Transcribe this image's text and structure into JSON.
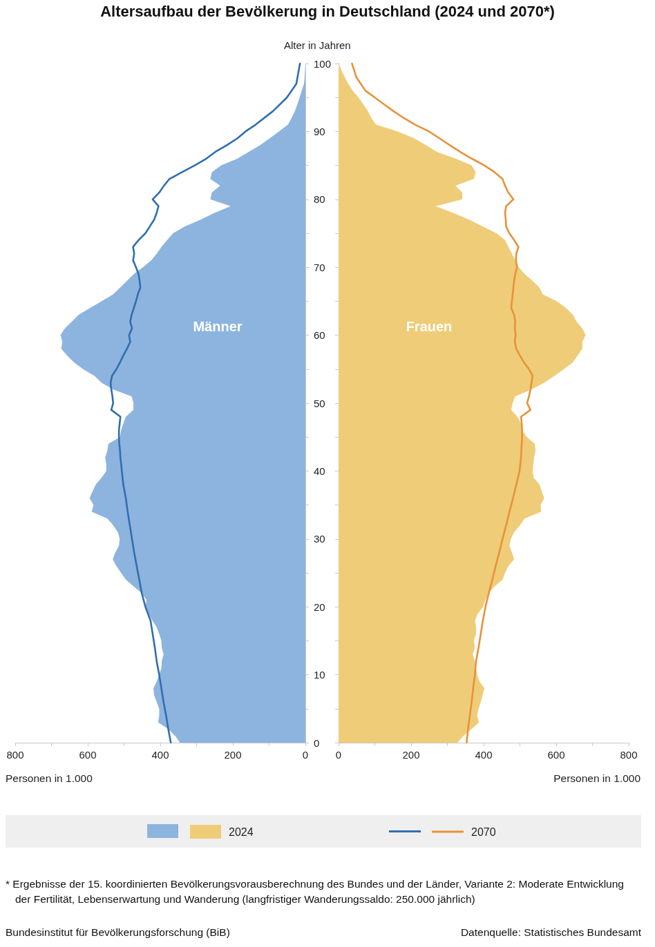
{
  "chart_data": [
    {
      "type": "area",
      "title": "Altersaufbau der Bevölkerung in Deutschland (2024 und 2070*)",
      "ylabel": "Alter in Jahren",
      "xlabel": "Personen in 1.000",
      "orientation": "horizontal",
      "xlim": [
        800,
        0
      ],
      "xticks": [
        800,
        {
          "value": 700,
          "label": null
        },
        600,
        {
          "value": 500,
          "label": null
        },
        400,
        {
          "value": 300,
          "label": null
        },
        200,
        {
          "value": 100,
          "label": null
        },
        0
      ],
      "ylim": [
        0,
        100
      ],
      "yticks": [
        0,
        {
          "value": 5,
          "label": null
        },
        10,
        {
          "value": 15,
          "label": null
        },
        20,
        {
          "value": 25,
          "label": null
        },
        30,
        {
          "value": 35,
          "label": null
        },
        40,
        {
          "value": 45,
          "label": null
        },
        50,
        {
          "value": 55,
          "label": null
        },
        60,
        {
          "value": 65,
          "label": null
        },
        70,
        {
          "value": 75,
          "label": null
        },
        80,
        {
          "value": 85,
          "label": null
        },
        90,
        {
          "value": 95,
          "label": null
        },
        100
      ],
      "grid": false,
      "marker": "none",
      "line_style": "solid",
      "series": [
        {
          "type": "area",
          "color": "#8cb4df",
          "x": [
            0,
            1,
            2,
            3,
            4,
            5,
            6,
            7,
            8,
            9,
            10,
            11,
            12,
            13,
            14,
            15,
            16,
            17,
            18,
            19,
            20,
            21,
            22,
            23,
            24,
            25,
            26,
            27,
            28,
            29,
            30,
            31,
            32,
            33,
            34,
            35,
            36,
            37,
            38,
            39,
            40,
            41,
            42,
            43,
            44,
            45,
            46,
            47,
            48,
            49,
            50,
            51,
            52,
            53,
            54,
            55,
            56,
            57,
            58,
            59,
            60,
            61,
            62,
            63,
            64,
            65,
            66,
            67,
            68,
            69,
            70,
            71,
            72,
            73,
            74,
            75,
            76,
            77,
            78,
            79,
            80,
            81,
            82,
            83,
            84,
            85,
            86,
            87,
            88,
            89,
            90,
            91,
            92,
            93,
            94,
            95,
            96,
            97,
            98,
            99,
            100
          ],
          "values": [
            346,
            359,
            378,
            406,
            403,
            403,
            410,
            417,
            419,
            410,
            403,
            397,
            396,
            391,
            396,
            397,
            403,
            410,
            422,
            432,
            441,
            438,
            451,
            473,
            495,
            508,
            521,
            531,
            524,
            514,
            512,
            517,
            530,
            546,
            589,
            584,
            595,
            587,
            578,
            562,
            549,
            549,
            552,
            546,
            543,
            511,
            508,
            502,
            495,
            474,
            474,
            479,
            530,
            562,
            581,
            613,
            638,
            657,
            673,
            670,
            675,
            663,
            644,
            625,
            594,
            562,
            530,
            511,
            492,
            473,
            448,
            425,
            410,
            397,
            381,
            365,
            333,
            289,
            251,
            206,
            262,
            258,
            235,
            262,
            258,
            232,
            187,
            156,
            124,
            98,
            73,
            48,
            38,
            29,
            22,
            16,
            10,
            4,
            2,
            1,
            0
          ]
        },
        {
          "type": "line",
          "color": "#2f6eb0",
          "x": [
            0,
            2,
            4,
            6,
            8,
            10,
            12,
            14,
            16,
            18,
            20,
            22,
            24,
            26,
            28,
            30,
            32,
            34,
            36,
            38,
            40,
            41,
            42,
            43,
            44,
            45,
            46,
            47,
            48,
            49,
            50,
            51,
            52,
            53,
            54,
            55,
            56,
            57,
            58,
            59,
            60,
            61,
            62,
            63,
            64,
            65,
            66,
            67,
            68,
            69,
            70,
            71,
            72,
            73,
            74,
            75,
            76,
            77,
            78,
            79,
            80,
            81,
            82,
            83,
            84,
            85,
            86,
            87,
            88,
            89,
            90,
            91,
            93,
            95,
            97,
            100
          ],
          "values": [
            371,
            378,
            384,
            391,
            397,
            403,
            410,
            415,
            421,
            427,
            441,
            451,
            458,
            465,
            472,
            478,
            484,
            490,
            495,
            502,
            506,
            508,
            510,
            511,
            513,
            514,
            514,
            512,
            510,
            535,
            530,
            532,
            535,
            537,
            533,
            521,
            511,
            502,
            492,
            483,
            486,
            478,
            483,
            479,
            473,
            467,
            462,
            455,
            457,
            460,
            467,
            475,
            472,
            475,
            460,
            441,
            429,
            417,
            410,
            405,
            421,
            403,
            390,
            375,
            340,
            305,
            273,
            248,
            216,
            187,
            165,
            137,
            89,
            51,
            25,
            15
          ]
        }
      ],
      "annotations": [
        "Männer",
        "* Ergebnisse der 15. koordinierten Bevölkerungsvorausberechnung des Bundes und der Länder, Variante 2: Moderate Entwicklung der Fertilität, Lebenserwartung und Wanderung (langfristiger Wanderungssaldo: 250.000 jährlich)",
        "Bundesinstitut für Bevölkerungsforschung (BiB)",
        "Datenquelle: Statistisches Bundesamt"
      ]
    },
    {
      "type": "area",
      "xlabel": "Personen in 1.000",
      "orientation": "horizontal",
      "xlim": [
        0,
        800
      ],
      "xticks": [
        0,
        {
          "value": 100,
          "label": null
        },
        200,
        {
          "value": 300,
          "label": null
        },
        400,
        {
          "value": 500,
          "label": null
        },
        600,
        {
          "value": 700,
          "label": null
        },
        800
      ],
      "ylim": [
        0,
        100
      ],
      "yticks": [
        0,
        {
          "value": 5,
          "label": null
        },
        10,
        {
          "value": 15,
          "label": null
        },
        20,
        {
          "value": 25,
          "label": null
        },
        30,
        {
          "value": 35,
          "label": null
        },
        40,
        {
          "value": 45,
          "label": null
        },
        50,
        {
          "value": 55,
          "label": null
        },
        60,
        {
          "value": 65,
          "label": null
        },
        70,
        {
          "value": 75,
          "label": null
        },
        80,
        {
          "value": 85,
          "label": null
        },
        90,
        {
          "value": 95,
          "label": null
        },
        100
      ],
      "tick_labels": "x",
      "grid": false,
      "legend": "bottom",
      "marker": "none",
      "line_style": "solid",
      "series": [
        {
          "name": "2024",
          "type": "area",
          "color": "#efcc78",
          "x": [
            0,
            1,
            2,
            3,
            4,
            5,
            6,
            7,
            8,
            9,
            10,
            11,
            12,
            13,
            14,
            15,
            16,
            17,
            18,
            19,
            20,
            21,
            22,
            23,
            24,
            25,
            26,
            27,
            28,
            29,
            30,
            31,
            32,
            33,
            34,
            35,
            36,
            37,
            38,
            39,
            40,
            41,
            42,
            43,
            44,
            45,
            46,
            47,
            48,
            49,
            50,
            51,
            52,
            53,
            54,
            55,
            56,
            57,
            58,
            59,
            60,
            61,
            62,
            63,
            64,
            65,
            66,
            67,
            68,
            69,
            70,
            71,
            72,
            73,
            74,
            75,
            76,
            77,
            78,
            79,
            80,
            81,
            82,
            83,
            84,
            85,
            86,
            87,
            88,
            89,
            90,
            91,
            92,
            93,
            94,
            95,
            96,
            97,
            98,
            99,
            100
          ],
          "values": [
            328,
            344,
            367,
            387,
            382,
            386,
            392,
            397,
            402,
            389,
            382,
            379,
            376,
            370,
            376,
            373,
            379,
            379,
            376,
            384,
            398,
            405,
            414,
            430,
            452,
            459,
            468,
            484,
            478,
            471,
            475,
            484,
            500,
            513,
            558,
            557,
            567,
            560,
            554,
            538,
            535,
            537,
            539,
            543,
            541,
            519,
            506,
            503,
            493,
            476,
            480,
            487,
            532,
            567,
            595,
            621,
            646,
            659,
            672,
            672,
            681,
            672,
            656,
            646,
            627,
            602,
            563,
            554,
            535,
            513,
            497,
            487,
            478,
            468,
            459,
            436,
            398,
            360,
            316,
            268,
            341,
            341,
            322,
            373,
            378,
            367,
            322,
            271,
            240,
            208,
            163,
            103,
            90,
            81,
            68,
            55,
            39,
            27,
            17,
            8,
            0
          ]
        },
        {
          "name": "2070",
          "type": "line",
          "color": "#e8913a",
          "x": [
            0,
            2,
            4,
            6,
            8,
            10,
            12,
            14,
            16,
            18,
            20,
            22,
            24,
            26,
            28,
            30,
            32,
            34,
            36,
            38,
            40,
            42,
            44,
            45,
            46,
            47,
            48,
            49,
            50,
            51,
            52,
            53,
            54,
            55,
            56,
            57,
            58,
            59,
            60,
            61,
            62,
            63,
            64,
            65,
            66,
            67,
            68,
            69,
            70,
            71,
            72,
            73,
            74,
            75,
            76,
            77,
            78,
            79,
            80,
            81,
            82,
            83,
            84,
            85,
            86,
            87,
            88,
            89,
            90,
            91,
            92,
            93,
            94,
            95,
            96,
            98,
            100
          ],
          "values": [
            353,
            357,
            362,
            367,
            371,
            376,
            379,
            386,
            392,
            398,
            405,
            414,
            424,
            433,
            443,
            452,
            462,
            471,
            481,
            490,
            499,
            503,
            505,
            506,
            506,
            505,
            503,
            529,
            520,
            525,
            529,
            532,
            535,
            525,
            511,
            500,
            490,
            486,
            488,
            486,
            487,
            484,
            476,
            478,
            480,
            482,
            484,
            487,
            492,
            489,
            490,
            496,
            484,
            471,
            462,
            461,
            459,
            462,
            482,
            468,
            459,
            452,
            430,
            402,
            367,
            335,
            306,
            278,
            249,
            211,
            179,
            151,
            125,
            100,
            74,
            49,
            37
          ]
        }
      ],
      "annotations": [
        "Frauen"
      ]
    }
  ]
}
